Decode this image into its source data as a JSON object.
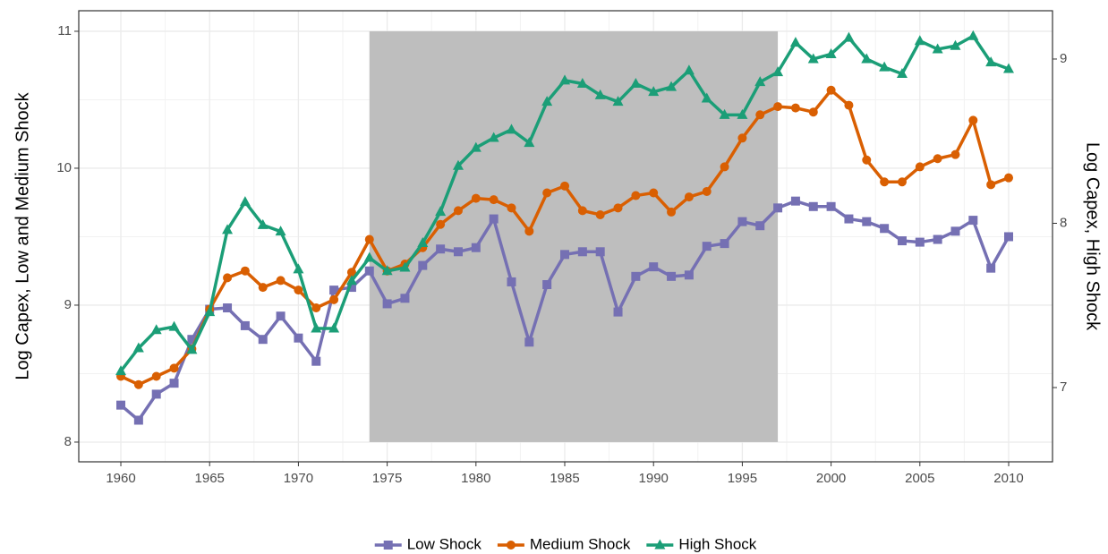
{
  "chart_data": {
    "type": "line",
    "y_label": "Log Capex, Low and Medium Shock",
    "y2_label": "Log Capex, High Shock",
    "x": [
      1960,
      1961,
      1962,
      1963,
      1964,
      1965,
      1966,
      1967,
      1968,
      1969,
      1970,
      1971,
      1972,
      1973,
      1974,
      1975,
      1976,
      1977,
      1978,
      1979,
      1980,
      1981,
      1982,
      1983,
      1984,
      1985,
      1986,
      1987,
      1988,
      1989,
      1990,
      1991,
      1992,
      1993,
      1994,
      1995,
      1996,
      1997,
      1998,
      1999,
      2000,
      2001,
      2002,
      2003,
      2004,
      2005,
      2006,
      2007,
      2008,
      2009,
      2010
    ],
    "xlim": [
      1957.63,
      2012.47
    ],
    "xticks": [
      1960,
      1965,
      1970,
      1975,
      1980,
      1985,
      1990,
      1995,
      2000,
      2005,
      2010
    ],
    "ylim": [
      7.856,
      11.15
    ],
    "yticks": [
      8,
      9,
      10,
      11
    ],
    "y2lim": [
      6.548,
      9.294
    ],
    "y2ticks": [
      7,
      8,
      9
    ],
    "grid": true,
    "legend": "bottom",
    "shade": {
      "x": [
        1974,
        1997
      ],
      "y": [
        8,
        11
      ],
      "color": "#bebebe"
    },
    "series": [
      {
        "name": "Low Shock",
        "color": "#7570b3",
        "marker": "square",
        "values": [
          8.27,
          8.16,
          8.35,
          8.43,
          8.75,
          8.97,
          8.98,
          8.85,
          8.75,
          8.92,
          8.76,
          8.59,
          9.11,
          9.13,
          9.25,
          9.01,
          9.05,
          9.29,
          9.41,
          9.39,
          9.42,
          9.63,
          9.17,
          8.73,
          9.15,
          9.37,
          9.39,
          9.39,
          8.95,
          9.21,
          9.28,
          9.21,
          9.22,
          9.43,
          9.45,
          9.61,
          9.58,
          9.71,
          9.76,
          9.72,
          9.72,
          9.63,
          9.61,
          9.56,
          9.47,
          9.46,
          9.48,
          9.54,
          9.62,
          9.27,
          9.5
        ]
      },
      {
        "name": "Medium Shock",
        "color": "#d95f02",
        "marker": "circle",
        "values": [
          8.48,
          8.42,
          8.48,
          8.54,
          8.68,
          8.97,
          9.2,
          9.25,
          9.13,
          9.18,
          9.11,
          8.98,
          9.04,
          9.24,
          9.48,
          9.25,
          9.3,
          9.42,
          9.59,
          9.69,
          9.78,
          9.77,
          9.71,
          9.54,
          9.82,
          9.87,
          9.69,
          9.66,
          9.71,
          9.8,
          9.82,
          9.68,
          9.79,
          9.83,
          10.01,
          10.22,
          10.39,
          10.45,
          10.44,
          10.41,
          10.57,
          10.46,
          10.06,
          9.9,
          9.9,
          10.01,
          10.07,
          10.1,
          10.35,
          9.88,
          9.93
        ]
      },
      {
        "name": "High Shock",
        "color": "#1b9e77",
        "marker": "triangle",
        "axis": "y2",
        "values": [
          7.1,
          7.24,
          7.35,
          7.37,
          7.23,
          7.46,
          7.96,
          8.13,
          7.99,
          7.95,
          7.72,
          7.36,
          7.36,
          7.65,
          7.79,
          7.71,
          7.73,
          7.88,
          8.07,
          8.35,
          8.46,
          8.52,
          8.57,
          8.49,
          8.74,
          8.87,
          8.85,
          8.78,
          8.74,
          8.85,
          8.8,
          8.83,
          8.93,
          8.76,
          8.66,
          8.66,
          8.86,
          8.92,
          9.1,
          9.0,
          9.03,
          9.13,
          9.0,
          8.95,
          8.91,
          9.11,
          9.06,
          9.08,
          9.14,
          8.98,
          8.94
        ]
      }
    ]
  }
}
